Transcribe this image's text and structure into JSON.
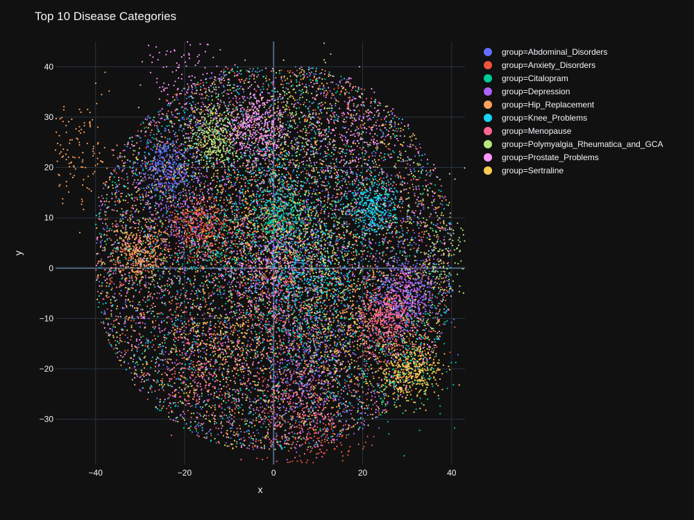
{
  "chart_data": {
    "type": "scatter",
    "title": "Top 10 Disease Categories",
    "xlabel": "x",
    "ylabel": "y",
    "xlim": [
      -49,
      43
    ],
    "ylim": [
      -39,
      45
    ],
    "x_ticks": [
      -40,
      -20,
      0,
      20,
      40
    ],
    "y_ticks": [
      -30,
      -20,
      -10,
      0,
      10,
      20,
      30,
      40
    ],
    "grid": true,
    "legend_position": "right",
    "series": [
      {
        "name": "group=Abdominal_Disorders",
        "color": "#636efa",
        "clusters": [
          {
            "x": -24,
            "y": 20
          },
          {
            "x": 29,
            "y": -4
          },
          {
            "x": 10,
            "y": -18
          },
          {
            "x": 5,
            "y": 5
          }
        ]
      },
      {
        "name": "group=Anxiety_Disorders",
        "color": "#EF553B",
        "clusters": [
          {
            "x": -17,
            "y": 8
          },
          {
            "x": 26,
            "y": -12
          },
          {
            "x": 10,
            "y": -32
          },
          {
            "x": 0,
            "y": 0
          }
        ]
      },
      {
        "name": "group=Citalopram",
        "color": "#00cc96",
        "clusters": [
          {
            "x": 2,
            "y": 10
          },
          {
            "x": -12,
            "y": 3
          },
          {
            "x": 30,
            "y": -20
          },
          {
            "x": 5,
            "y": -10
          }
        ]
      },
      {
        "name": "group=Depression",
        "color": "#ab63fa",
        "clusters": [
          {
            "x": 30,
            "y": -5
          },
          {
            "x": 8,
            "y": -22
          },
          {
            "x": -20,
            "y": 10
          },
          {
            "x": 0,
            "y": 0
          }
        ]
      },
      {
        "name": "group=Hip_Replacement",
        "color": "#FFA15A",
        "clusters": [
          {
            "x": -30,
            "y": 3
          },
          {
            "x": -4,
            "y": 13
          },
          {
            "x": -46,
            "y": 24
          },
          {
            "x": 10,
            "y": -5
          }
        ]
      },
      {
        "name": "group=Knee_Problems",
        "color": "#19d3f3",
        "clusters": [
          {
            "x": 22,
            "y": 12
          },
          {
            "x": 10,
            "y": -4
          },
          {
            "x": 0,
            "y": 18
          },
          {
            "x": 5,
            "y": 0
          }
        ]
      },
      {
        "name": "group=Menopause",
        "color": "#FF6692",
        "clusters": [
          {
            "x": 25,
            "y": -10
          },
          {
            "x": 5,
            "y": -28
          },
          {
            "x": -15,
            "y": -20
          },
          {
            "x": 0,
            "y": -10
          }
        ]
      },
      {
        "name": "group=Polymyalgia_Rheumatica_and_GCA",
        "color": "#B6E880",
        "clusters": [
          {
            "x": -13,
            "y": 26
          },
          {
            "x": 40,
            "y": 2
          },
          {
            "x": 13,
            "y": 5
          },
          {
            "x": 5,
            "y": 28
          }
        ]
      },
      {
        "name": "group=Prostate_Problems",
        "color": "#FF97FF",
        "clusters": [
          {
            "x": -4,
            "y": 28
          },
          {
            "x": 16,
            "y": 27
          },
          {
            "x": -18,
            "y": 36
          },
          {
            "x": 0,
            "y": 0
          }
        ]
      },
      {
        "name": "group=Sertraline",
        "color": "#FECB52",
        "clusters": [
          {
            "x": 31,
            "y": -20
          },
          {
            "x": -10,
            "y": -15
          },
          {
            "x": 0,
            "y": 5
          },
          {
            "x": 15,
            "y": -15
          }
        ]
      }
    ]
  }
}
